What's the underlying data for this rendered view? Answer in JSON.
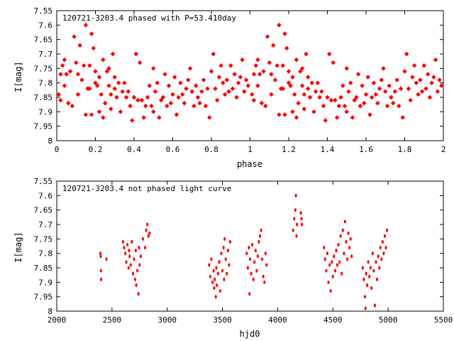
{
  "chart_data": [
    {
      "type": "scatter",
      "title": "120721-3203.4 phased with P=53.410day",
      "xlabel": "phase",
      "ylabel": "I[mag]",
      "xlim": [
        0,
        2
      ],
      "ylim": [
        7.55,
        8.0
      ],
      "y_inverted": true,
      "grid": false,
      "x_ticks": [
        "0",
        "0.2",
        "0.4",
        "0.6",
        "0.8",
        "1",
        "1.2",
        "1.4",
        "1.6",
        "1.8",
        "2"
      ],
      "y_ticks": [
        "7.55",
        "7.6",
        "7.65",
        "7.7",
        "7.75",
        "7.8",
        "7.85",
        "7.9",
        "7.95",
        "8"
      ],
      "marker_color": "#ff0000",
      "series": [
        {
          "points_phase_0_to_1": [
            [
              0.01,
              7.84
            ],
            [
              0.02,
              7.77
            ],
            [
              0.02,
              7.86
            ],
            [
              0.03,
              7.74
            ],
            [
              0.04,
              7.72
            ],
            [
              0.04,
              7.81
            ],
            [
              0.05,
              7.77
            ],
            [
              0.06,
              7.87
            ],
            [
              0.07,
              7.76
            ],
            [
              0.08,
              7.88
            ],
            [
              0.09,
              7.64
            ],
            [
              0.1,
              7.73
            ],
            [
              0.11,
              7.77
            ],
            [
              0.11,
              7.84
            ],
            [
              0.12,
              7.67
            ],
            [
              0.13,
              7.79
            ],
            [
              0.14,
              7.74
            ],
            [
              0.15,
              7.6
            ],
            [
              0.15,
              7.91
            ],
            [
              0.16,
              7.82
            ],
            [
              0.17,
              7.74
            ],
            [
              0.17,
              7.82
            ],
            [
              0.18,
              7.91
            ],
            [
              0.18,
              7.63
            ],
            [
              0.19,
              7.68
            ],
            [
              0.2,
              7.8
            ],
            [
              0.2,
              7.76
            ],
            [
              0.21,
              7.81
            ],
            [
              0.22,
              7.78
            ],
            [
              0.22,
              7.9
            ],
            [
              0.23,
              7.84
            ],
            [
              0.24,
              7.72
            ],
            [
              0.24,
              7.92
            ],
            [
              0.25,
              7.87
            ],
            [
              0.26,
              7.76
            ],
            [
              0.27,
              7.81
            ],
            [
              0.27,
              7.75
            ],
            [
              0.28,
              7.84
            ],
            [
              0.28,
              7.89
            ],
            [
              0.29,
              7.7
            ],
            [
              0.3,
              7.78
            ],
            [
              0.3,
              7.82
            ],
            [
              0.31,
              7.85
            ],
            [
              0.32,
              7.8
            ],
            [
              0.33,
              7.9
            ],
            [
              0.34,
              7.83
            ],
            [
              0.35,
              7.8
            ],
            [
              0.36,
              7.85
            ],
            [
              0.37,
              7.83
            ],
            [
              0.38,
              7.88
            ],
            [
              0.39,
              7.93
            ],
            [
              0.4,
              7.85
            ],
            [
              0.41,
              7.7
            ],
            [
              0.42,
              7.86
            ],
            [
              0.43,
              7.73
            ],
            [
              0.44,
              7.86
            ],
            [
              0.45,
              7.92
            ],
            [
              0.46,
              7.88
            ],
            [
              0.47,
              7.85
            ],
            [
              0.48,
              7.81
            ],
            [
              0.49,
              7.88
            ],
            [
              0.5,
              7.9
            ],
            [
              0.5,
              7.75
            ],
            [
              0.51,
              7.83
            ],
            [
              0.52,
              7.8
            ],
            [
              0.53,
              7.92
            ],
            [
              0.54,
              7.86
            ],
            [
              0.55,
              7.85
            ],
            [
              0.56,
              7.77
            ],
            [
              0.57,
              7.88
            ],
            [
              0.58,
              7.81
            ],
            [
              0.59,
              7.87
            ],
            [
              0.6,
              7.84
            ],
            [
              0.61,
              7.78
            ],
            [
              0.62,
              7.91
            ],
            [
              0.63,
              7.85
            ],
            [
              0.64,
              7.8
            ],
            [
              0.65,
              7.84
            ],
            [
              0.66,
              7.87
            ],
            [
              0.67,
              7.82
            ],
            [
              0.68,
              7.79
            ],
            [
              0.69,
              7.75
            ],
            [
              0.7,
              7.83
            ],
            [
              0.71,
              7.88
            ],
            [
              0.72,
              7.81
            ],
            [
              0.73,
              7.85
            ],
            [
              0.74,
              7.87
            ],
            [
              0.75,
              7.83
            ],
            [
              0.76,
              7.79
            ],
            [
              0.77,
              7.88
            ],
            [
              0.78,
              7.82
            ],
            [
              0.79,
              7.92
            ],
            [
              0.8,
              7.76
            ],
            [
              0.81,
              7.7
            ],
            [
              0.82,
              7.82
            ],
            [
              0.83,
              7.86
            ],
            [
              0.84,
              7.78
            ],
            [
              0.85,
              7.74
            ],
            [
              0.86,
              7.8
            ],
            [
              0.87,
              7.84
            ],
            [
              0.88,
              7.79
            ],
            [
              0.89,
              7.83
            ],
            [
              0.9,
              7.74
            ],
            [
              0.91,
              7.82
            ],
            [
              0.92,
              7.77
            ],
            [
              0.93,
              7.85
            ],
            [
              0.94,
              7.8
            ],
            [
              0.95,
              7.78
            ],
            [
              0.96,
              7.72
            ],
            [
              0.97,
              7.83
            ],
            [
              0.98,
              7.79
            ],
            [
              0.99,
              7.81
            ]
          ],
          "points_note": "same points repeated at phase + 1 for the second cycle"
        }
      ]
    },
    {
      "type": "scatter",
      "title": "120721-3203.4 not phased light curve",
      "xlabel": "hjd0",
      "ylabel": "I[mag]",
      "xlim": [
        2000,
        5500
      ],
      "ylim": [
        7.55,
        8.0
      ],
      "y_inverted": true,
      "grid": false,
      "x_ticks": [
        "2000",
        "2500",
        "3000",
        "3500",
        "4000",
        "4500",
        "5000",
        "5500"
      ],
      "y_ticks": [
        "7.55",
        "7.6",
        "7.65",
        "7.7",
        "7.75",
        "7.8",
        "7.85",
        "7.9",
        "7.95",
        "8"
      ],
      "marker_color": "#ff0000",
      "series": [
        {
          "points": [
            [
              2395,
              7.8
            ],
            [
              2398,
              7.81
            ],
            [
              2400,
              7.86
            ],
            [
              2402,
              7.89
            ],
            [
              2450,
              7.82
            ],
            [
              2600,
              7.76
            ],
            [
              2610,
              7.78
            ],
            [
              2620,
              7.8
            ],
            [
              2630,
              7.83
            ],
            [
              2640,
              7.77
            ],
            [
              2650,
              7.85
            ],
            [
              2655,
              7.79
            ],
            [
              2660,
              7.81
            ],
            [
              2670,
              7.84
            ],
            [
              2680,
              7.76
            ],
            [
              2690,
              7.87
            ],
            [
              2700,
              7.82
            ],
            [
              2710,
              7.89
            ],
            [
              2715,
              7.79
            ],
            [
              2720,
              7.91
            ],
            [
              2730,
              7.86
            ],
            [
              2740,
              7.94
            ],
            [
              2745,
              7.78
            ],
            [
              2750,
              7.84
            ],
            [
              2760,
              7.81
            ],
            [
              2780,
              7.75
            ],
            [
              2800,
              7.78
            ],
            [
              2810,
              7.72
            ],
            [
              2820,
              7.7
            ],
            [
              2830,
              7.74
            ],
            [
              2840,
              7.73
            ],
            [
              3380,
              7.84
            ],
            [
              3390,
              7.88
            ],
            [
              3400,
              7.82
            ],
            [
              3410,
              7.9
            ],
            [
              3420,
              7.86
            ],
            [
              3425,
              7.92
            ],
            [
              3430,
              7.89
            ],
            [
              3440,
              7.95
            ],
            [
              3445,
              7.85
            ],
            [
              3450,
              7.91
            ],
            [
              3460,
              7.87
            ],
            [
              3470,
              7.83
            ],
            [
              3480,
              7.93
            ],
            [
              3490,
              7.8
            ],
            [
              3500,
              7.86
            ],
            [
              3510,
              7.78
            ],
            [
              3515,
              7.89
            ],
            [
              3520,
              7.75
            ],
            [
              3530,
              7.82
            ],
            [
              3540,
              7.87
            ],
            [
              3550,
              7.79
            ],
            [
              3560,
              7.84
            ],
            [
              3570,
              7.76
            ],
            [
              3720,
              7.8
            ],
            [
              3730,
              7.85
            ],
            [
              3740,
              7.78
            ],
            [
              3745,
              7.94
            ],
            [
              3750,
              7.82
            ],
            [
              3760,
              7.87
            ],
            [
              3770,
              7.77
            ],
            [
              3780,
              7.89
            ],
            [
              3790,
              7.83
            ],
            [
              3800,
              7.79
            ],
            [
              3810,
              7.86
            ],
            [
              3820,
              7.81
            ],
            [
              3830,
              7.76
            ],
            [
              3840,
              7.74
            ],
            [
              3850,
              7.72
            ],
            [
              3860,
              7.82
            ],
            [
              3870,
              7.88
            ],
            [
              3880,
              7.9
            ],
            [
              3890,
              7.8
            ],
            [
              3900,
              7.84
            ],
            [
              4140,
              7.72
            ],
            [
              4150,
              7.68
            ],
            [
              4160,
              7.65
            ],
            [
              4165,
              7.6
            ],
            [
              4170,
              7.74
            ],
            [
              4175,
              7.7
            ],
            [
              4210,
              7.66
            ],
            [
              4215,
              7.68
            ],
            [
              4220,
              7.7
            ],
            [
              4420,
              7.78
            ],
            [
              4430,
              7.82
            ],
            [
              4440,
              7.86
            ],
            [
              4450,
              7.8
            ],
            [
              4460,
              7.9
            ],
            [
              4470,
              7.84
            ],
            [
              4480,
              7.93
            ],
            [
              4490,
              7.83
            ],
            [
              4500,
              7.88
            ],
            [
              4510,
              7.81
            ],
            [
              4520,
              7.86
            ],
            [
              4530,
              7.79
            ],
            [
              4540,
              7.84
            ],
            [
              4550,
              7.77
            ],
            [
              4560,
              7.83
            ],
            [
              4570,
              7.74
            ],
            [
              4580,
              7.87
            ],
            [
              4590,
              7.72
            ],
            [
              4600,
              7.8
            ],
            [
              4610,
              7.69
            ],
            [
              4620,
              7.76
            ],
            [
              4630,
              7.82
            ],
            [
              4640,
              7.73
            ],
            [
              4650,
              7.78
            ],
            [
              4660,
              7.75
            ],
            [
              4670,
              7.81
            ],
            [
              4770,
              7.85
            ],
            [
              4780,
              7.89
            ],
            [
              4790,
              7.95
            ],
            [
              4795,
              7.99
            ],
            [
              4800,
              7.87
            ],
            [
              4810,
              7.91
            ],
            [
              4820,
              7.83
            ],
            [
              4830,
              7.88
            ],
            [
              4840,
              7.85
            ],
            [
              4850,
              7.92
            ],
            [
              4860,
              7.8
            ],
            [
              4870,
              7.86
            ],
            [
              4880,
              7.98
            ],
            [
              4890,
              7.83
            ],
            [
              4900,
              7.89
            ],
            [
              4910,
              7.81
            ],
            [
              4920,
              7.85
            ],
            [
              4930,
              7.78
            ],
            [
              4940,
              7.82
            ],
            [
              4950,
              7.76
            ],
            [
              4960,
              7.8
            ],
            [
              4970,
              7.74
            ],
            [
              4980,
              7.78
            ],
            [
              4990,
              7.72
            ]
          ]
        }
      ]
    }
  ]
}
